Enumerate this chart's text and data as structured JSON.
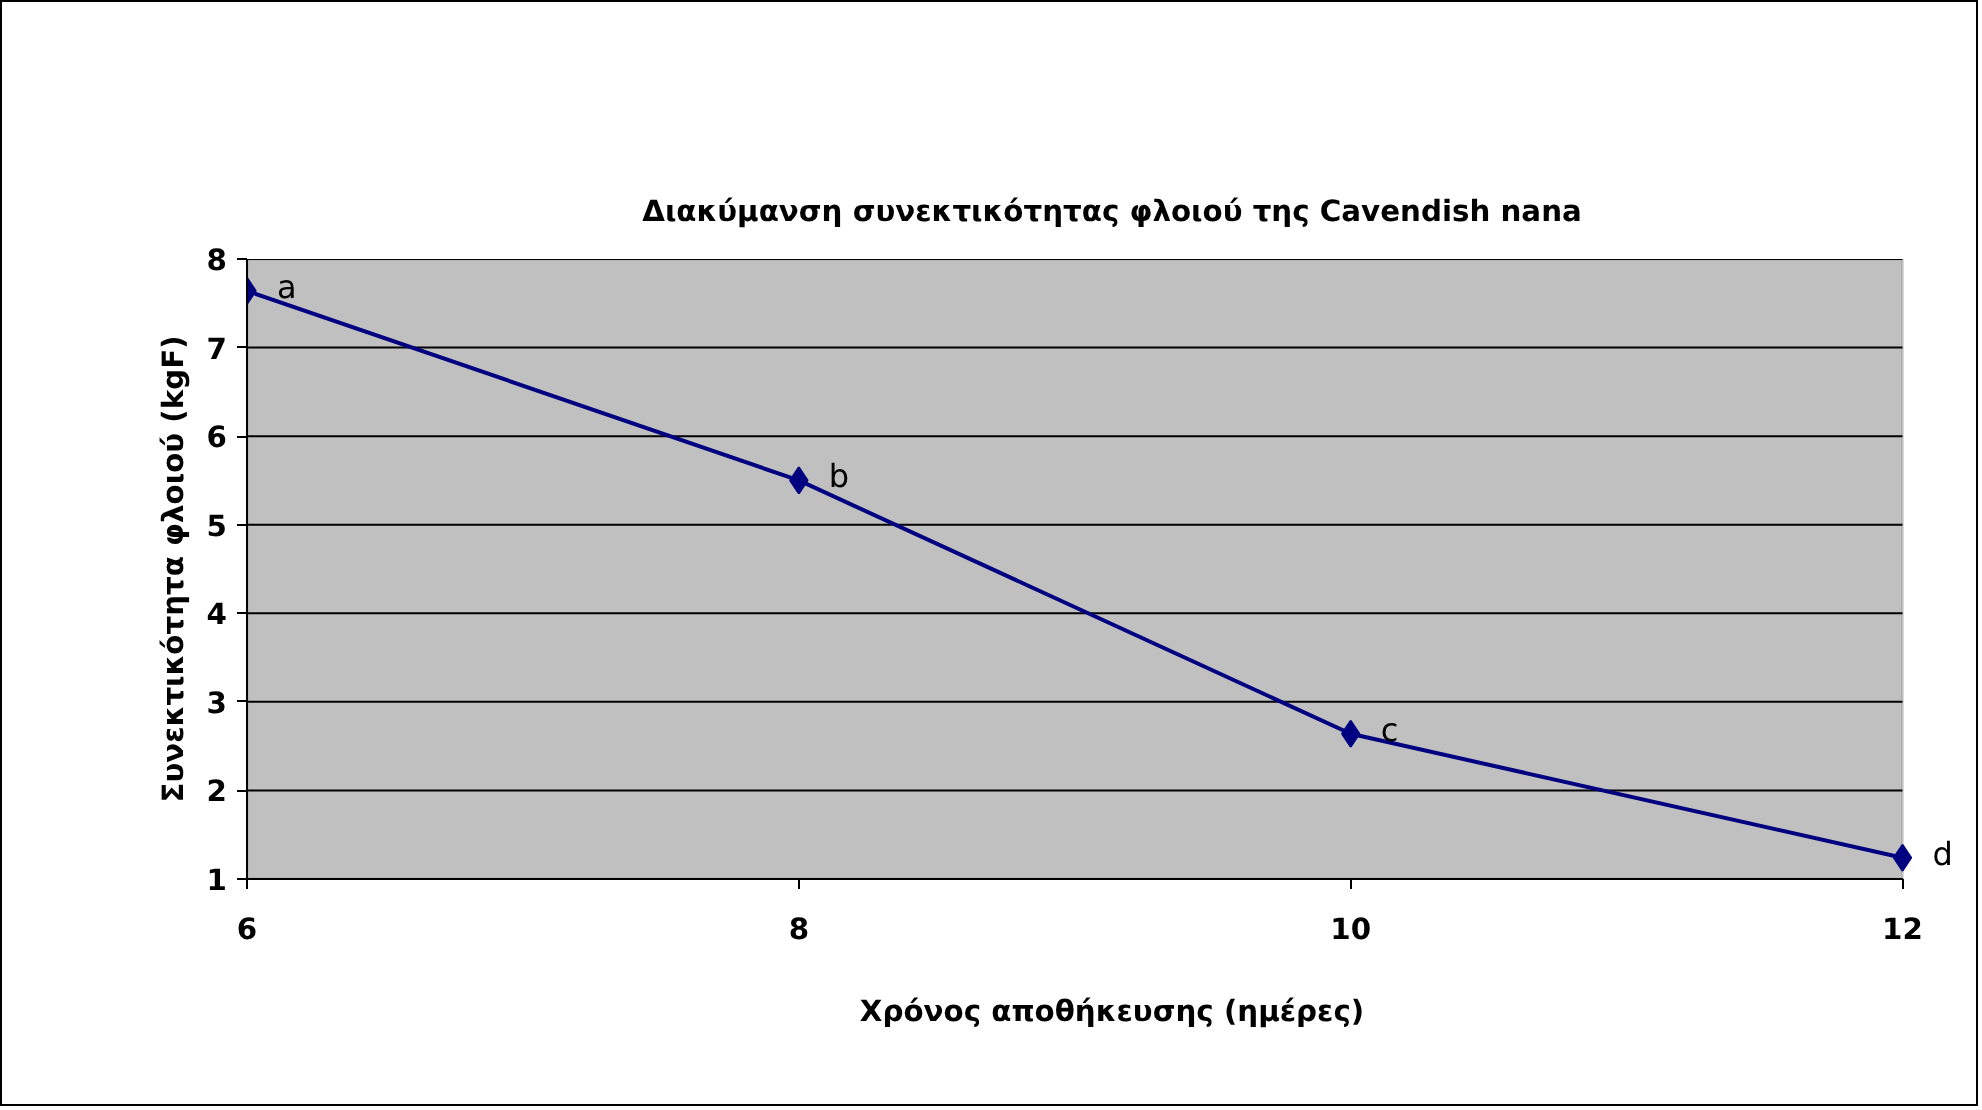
{
  "chart_data": {
    "type": "line",
    "title": "Διακύμανση συνεκτικότητας φλοιού της Cavendish nana",
    "xlabel": "Χρόνος αποθήκευσης (ημέρες)",
    "ylabel": "Συνεκτικότητα φλοιού (kgF)",
    "x": [
      6,
      8,
      10,
      12
    ],
    "series": [
      {
        "color": "#000080",
        "values": [
          7.64,
          5.5,
          2.64,
          1.24
        ]
      }
    ],
    "xlim": [
      6,
      12
    ],
    "xticks": [
      6,
      8,
      10,
      12
    ],
    "ylim": [
      1,
      8
    ],
    "yticks": [
      1,
      2,
      3,
      4,
      5,
      6,
      7,
      8
    ],
    "grid": "y",
    "marker": "diamond",
    "line_style": "solid",
    "annotations": [
      {
        "text": "a",
        "x": 6,
        "y": 7.64
      },
      {
        "text": "b",
        "x": 8,
        "y": 5.5
      },
      {
        "text": "c",
        "x": 10,
        "y": 2.64
      },
      {
        "text": "d",
        "x": 12,
        "y": 1.24
      }
    ]
  }
}
